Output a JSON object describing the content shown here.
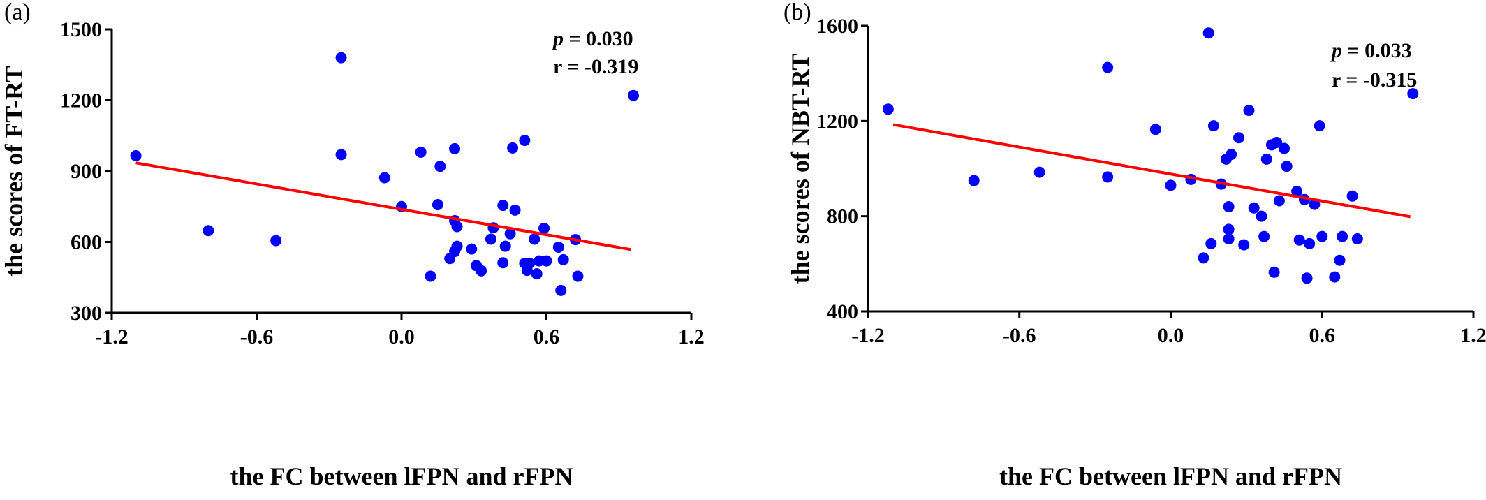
{
  "colors": {
    "points": "#0000ff",
    "fit_line": "#ff0000",
    "axes": "#000000"
  },
  "chart_data": [
    {
      "type": "scatter",
      "panel_label": "(a)",
      "xlabel": "the FC between lFPN and rFPN",
      "ylabel": "the scores of FT-RT",
      "xlim": [
        -1.2,
        1.2
      ],
      "ylim": [
        300,
        1500
      ],
      "xticks": [
        -1.2,
        -0.6,
        0.0,
        0.6,
        1.2
      ],
      "xtick_labels": [
        "-1.2",
        "-0.6",
        "0.0",
        "0.6",
        "1.2"
      ],
      "yticks": [
        300,
        600,
        900,
        1200,
        1500
      ],
      "ytick_labels": [
        "300",
        "600",
        "900",
        "1200",
        "1500"
      ],
      "stats": {
        "p_symbol": "p",
        "p_text": "= 0.030",
        "r_text": "r =  -0.319"
      },
      "fit_line": {
        "x": [
          -1.1,
          0.95
        ],
        "y": [
          935,
          568
        ]
      },
      "points": {
        "x": [
          -1.1,
          -0.8,
          -0.52,
          -0.25,
          -0.25,
          -0.07,
          0.0,
          0.08,
          0.15,
          0.16,
          0.2,
          0.12,
          0.22,
          0.22,
          0.23,
          0.23,
          0.22,
          0.29,
          0.31,
          0.33,
          0.37,
          0.38,
          0.42,
          0.42,
          0.43,
          0.45,
          0.46,
          0.47,
          0.51,
          0.51,
          0.52,
          0.53,
          0.55,
          0.56,
          0.57,
          0.59,
          0.6,
          0.65,
          0.66,
          0.67,
          0.72,
          0.73,
          0.96
        ],
        "y": [
          965,
          648,
          606,
          1380,
          970,
          872,
          750,
          980,
          758,
          920,
          530,
          455,
          995,
          690,
          665,
          582,
          560,
          570,
          500,
          478,
          612,
          660,
          755,
          512,
          582,
          635,
          998,
          735,
          510,
          1030,
          480,
          510,
          612,
          465,
          520,
          658,
          520,
          578,
          395,
          525,
          610,
          455,
          1220
        ]
      }
    },
    {
      "type": "scatter",
      "panel_label": "(b)",
      "xlabel": "the FC between lFPN and rFPN",
      "ylabel": "the scores of NBT-RT",
      "xlim": [
        -1.2,
        1.2
      ],
      "ylim": [
        400,
        1600
      ],
      "xticks": [
        -1.2,
        -0.6,
        0.0,
        0.6,
        1.2
      ],
      "xtick_labels": [
        "-1.2",
        "-0.6",
        "0.0",
        "0.6",
        "1.2"
      ],
      "yticks": [
        400,
        800,
        1200,
        1600
      ],
      "ytick_labels": [
        "400",
        "800",
        "1200",
        "1600"
      ],
      "stats": {
        "p_symbol": "p",
        "p_text": "= 0.033",
        "r_text": "r =  -0.315"
      },
      "fit_line": {
        "x": [
          -1.1,
          0.95
        ],
        "y": [
          1185,
          798
        ]
      },
      "points": {
        "x": [
          -1.12,
          -0.78,
          -0.52,
          -0.25,
          -0.25,
          -0.06,
          0.0,
          0.08,
          0.13,
          0.15,
          0.16,
          0.17,
          0.2,
          0.22,
          0.23,
          0.23,
          0.23,
          0.24,
          0.27,
          0.29,
          0.31,
          0.33,
          0.36,
          0.37,
          0.38,
          0.4,
          0.41,
          0.42,
          0.43,
          0.45,
          0.46,
          0.5,
          0.51,
          0.53,
          0.54,
          0.55,
          0.57,
          0.59,
          0.6,
          0.65,
          0.67,
          0.68,
          0.72,
          0.74,
          0.96
        ],
        "y": [
          1250,
          950,
          985,
          965,
          1425,
          1165,
          930,
          955,
          625,
          1570,
          685,
          1180,
          935,
          1040,
          840,
          745,
          705,
          1060,
          1130,
          680,
          1245,
          835,
          800,
          715,
          1040,
          1100,
          565,
          1110,
          865,
          1085,
          1010,
          905,
          700,
          870,
          540,
          685,
          850,
          1180,
          715,
          545,
          615,
          715,
          885,
          705,
          1315
        ]
      }
    }
  ]
}
